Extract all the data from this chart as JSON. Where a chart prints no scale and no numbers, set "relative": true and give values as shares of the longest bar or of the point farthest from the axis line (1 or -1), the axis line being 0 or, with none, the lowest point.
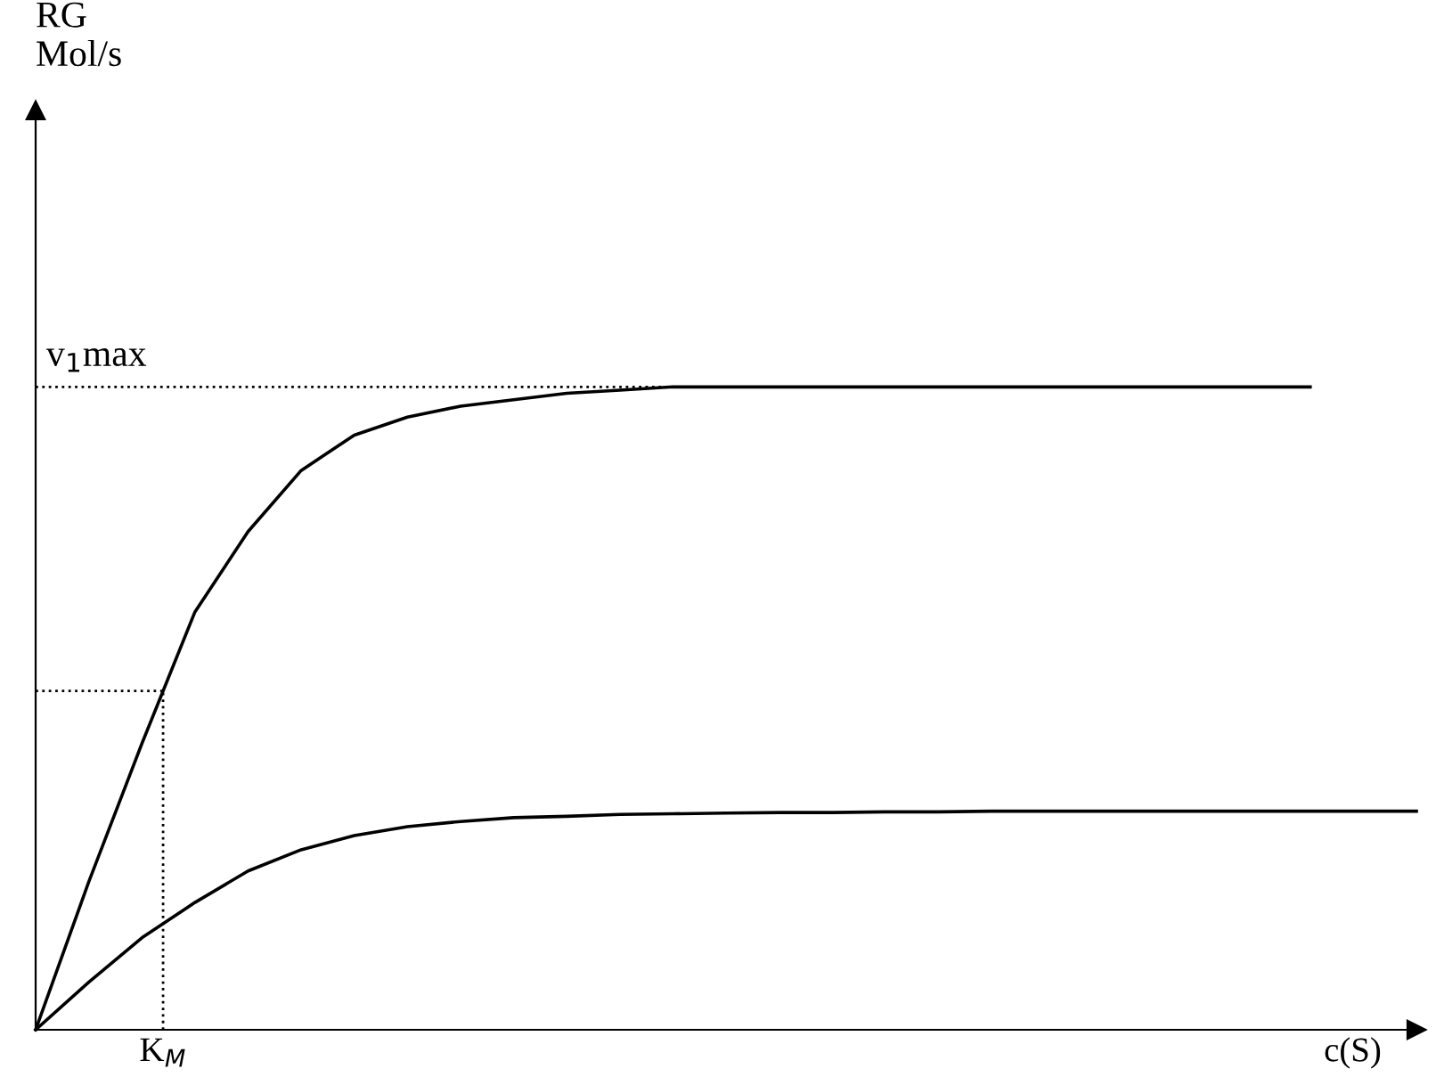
{
  "chart_data": {
    "type": "line",
    "relative": true,
    "annotations": [
      "RG\nMol/s",
      "K$_{M}$"
    ],
    "xlabel": "c(S)",
    "categories": [
      null,
      null,
      null,
      null,
      null,
      null,
      null,
      null,
      null,
      null,
      null,
      null,
      null,
      null,
      null,
      null,
      null,
      null,
      null,
      null,
      null,
      null,
      null,
      null,
      null,
      null,
      null
    ],
    "series": [
      {
        "color": "#000000",
        "values": [
          0,
          0.23,
          0.445,
          0.65,
          0.775,
          0.87,
          0.925,
          0.953,
          0.97,
          0.98,
          0.99,
          0.995,
          1,
          1,
          1,
          1,
          1,
          1,
          1,
          1,
          1,
          1,
          1,
          1,
          1,
          null,
          null
        ]
      },
      {
        "color": "#000000",
        "values": [
          0,
          0.074,
          0.143,
          0.198,
          0.247,
          0.28,
          0.302,
          0.316,
          0.324,
          0.33,
          0.332,
          0.335,
          0.336,
          0.337,
          0.338,
          0.338,
          0.339,
          0.339,
          0.34,
          0.34,
          0.34,
          0.34,
          0.34,
          0.34,
          0.34,
          0.34,
          0.34
        ]
      }
    ],
    "ref_lines": [
      {
        "axis": "y",
        "value": 1,
        "label": "v$_{1}$max",
        "color": "#000000",
        "line_style": "dotted"
      },
      {
        "axis": "y",
        "value": 0.527,
        "color": "#000000",
        "line_style": "dotted"
      }
    ],
    "legend": false,
    "marker": "none",
    "line_style": "solid"
  }
}
